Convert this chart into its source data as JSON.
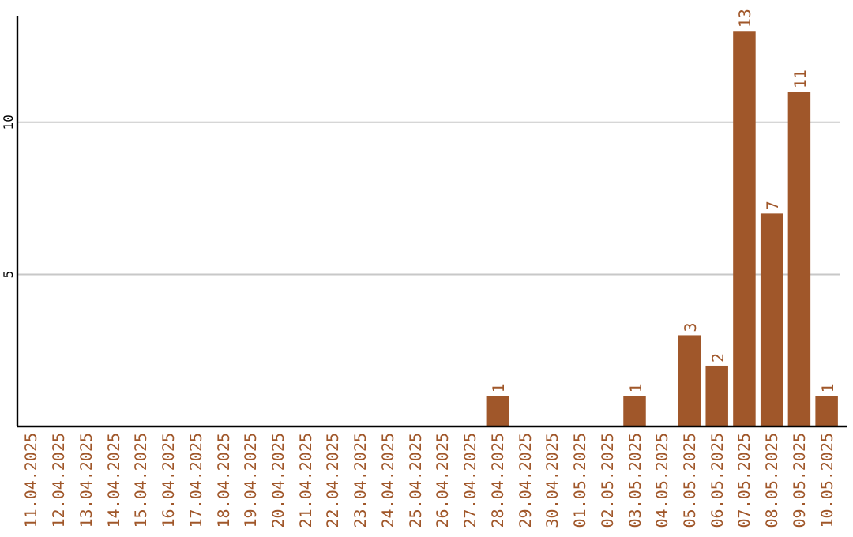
{
  "chart_data": {
    "type": "bar",
    "categories": [
      "11.04.2025",
      "12.04.2025",
      "13.04.2025",
      "14.04.2025",
      "15.04.2025",
      "16.04.2025",
      "17.04.2025",
      "18.04.2025",
      "19.04.2025",
      "20.04.2025",
      "21.04.2025",
      "22.04.2025",
      "23.04.2025",
      "24.04.2025",
      "25.04.2025",
      "26.04.2025",
      "27.04.2025",
      "28.04.2025",
      "29.04.2025",
      "30.04.2025",
      "01.05.2025",
      "02.05.2025",
      "03.05.2025",
      "04.05.2025",
      "05.05.2025",
      "06.05.2025",
      "07.05.2025",
      "08.05.2025",
      "09.05.2025",
      "10.05.2025"
    ],
    "values": [
      0,
      0,
      0,
      0,
      0,
      0,
      0,
      0,
      0,
      0,
      0,
      0,
      0,
      0,
      0,
      0,
      0,
      1,
      0,
      0,
      0,
      0,
      1,
      0,
      3,
      2,
      13,
      7,
      11,
      1
    ],
    "value_labels": [
      null,
      null,
      null,
      null,
      null,
      null,
      null,
      null,
      null,
      null,
      null,
      null,
      null,
      null,
      null,
      null,
      null,
      "1",
      null,
      null,
      null,
      null,
      "1",
      null,
      "3",
      "2",
      "13",
      "7",
      "11",
      "1"
    ],
    "color": "#a0572a",
    "ylim": [
      0,
      13.5
    ],
    "yticks": [
      5,
      10
    ],
    "grid": "y"
  }
}
